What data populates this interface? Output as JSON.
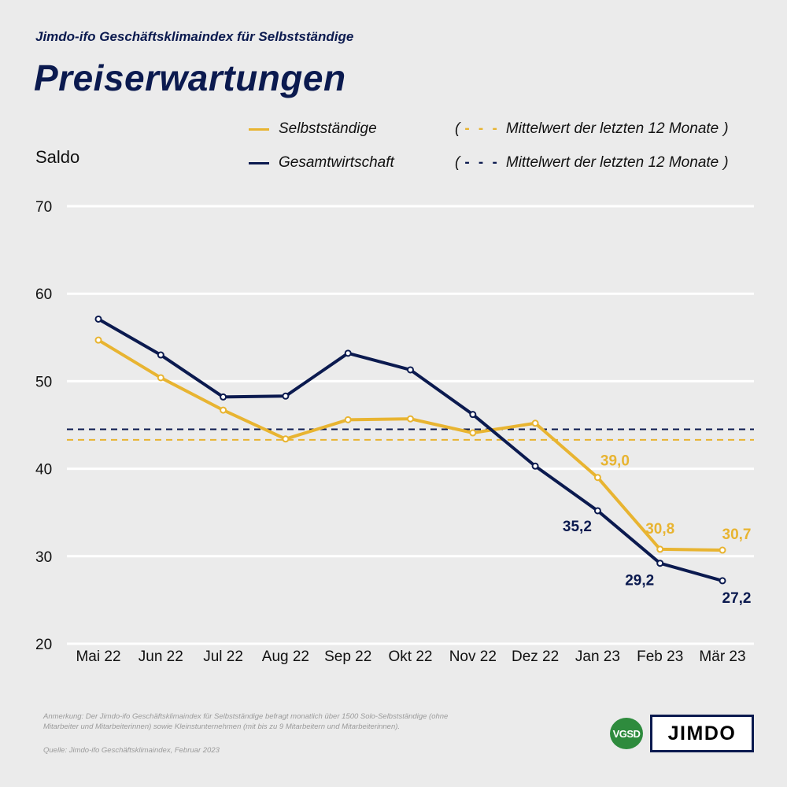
{
  "header": {
    "subtitle": "Jimdo-ifo Geschäftsklimaindex für Selbstständige",
    "title": "Preiserwartungen"
  },
  "legend": {
    "series1": "Selbstständige",
    "series2": "Gesamtwirtschaft",
    "avg1": "Mittelwert der letzten 12 Monate",
    "avg2": "Mittelwert der letzten 12 Monate",
    "open_paren": "(",
    "close_paren": ")",
    "dash_glyph": "- - -"
  },
  "footer": {
    "note": "Anmerkung: Der Jimdo-ifo Geschäftsklimaindex für Selbstständige befragt monatlich über 1500 Solo-Selbstständige (ohne Mitarbeiter und Mitarbeiterinnen) sowie Kleinstunternehmen (mit bis zu 9 Mitarbeitern und Mitarbeiterinnen).",
    "source": "Quelle: Jimdo-ifo Geschäftsklimaindex, Februar 2023",
    "logo_vgsd": "VGSD",
    "logo_jimdo": "JIMDO"
  },
  "colors": {
    "selbststaendige": "#e8b431",
    "gesamtwirtschaft": "#0b1a4f",
    "grid": "#ffffff",
    "background": "#ebebeb"
  },
  "chart_data": {
    "type": "line",
    "ylabel": "Saldo",
    "ylim": [
      20,
      70
    ],
    "yticks": [
      20,
      30,
      40,
      50,
      60,
      70
    ],
    "categories": [
      "Mai 22",
      "Jun 22",
      "Jul 22",
      "Aug 22",
      "Sep 22",
      "Okt 22",
      "Nov 22",
      "Dez 22",
      "Jan 23",
      "Feb 23",
      "Mär 23"
    ],
    "series": [
      {
        "name": "Selbstständige",
        "color": "#e8b431",
        "values": [
          54.7,
          50.4,
          46.7,
          43.4,
          45.6,
          45.7,
          44.1,
          45.2,
          39.0,
          30.8,
          30.7
        ],
        "data_labels": {
          "8": "39,0",
          "9": "30,8",
          "10": "30,7"
        }
      },
      {
        "name": "Gesamtwirtschaft",
        "color": "#0b1a4f",
        "values": [
          57.1,
          53.0,
          48.2,
          48.3,
          53.2,
          51.3,
          46.2,
          40.3,
          35.2,
          29.2,
          27.2
        ],
        "data_labels": {
          "8": "35,2",
          "9": "29,2",
          "10": "27,2"
        }
      }
    ],
    "averages": [
      {
        "series": "Selbstständige",
        "label": "Mittelwert der letzten 12 Monate",
        "value": 43.3,
        "color": "#e8b431"
      },
      {
        "series": "Gesamtwirtschaft",
        "label": "Mittelwert der letzten 12 Monate",
        "value": 44.5,
        "color": "#0b1a4f"
      }
    ],
    "grid": true,
    "legend_position": "top"
  }
}
